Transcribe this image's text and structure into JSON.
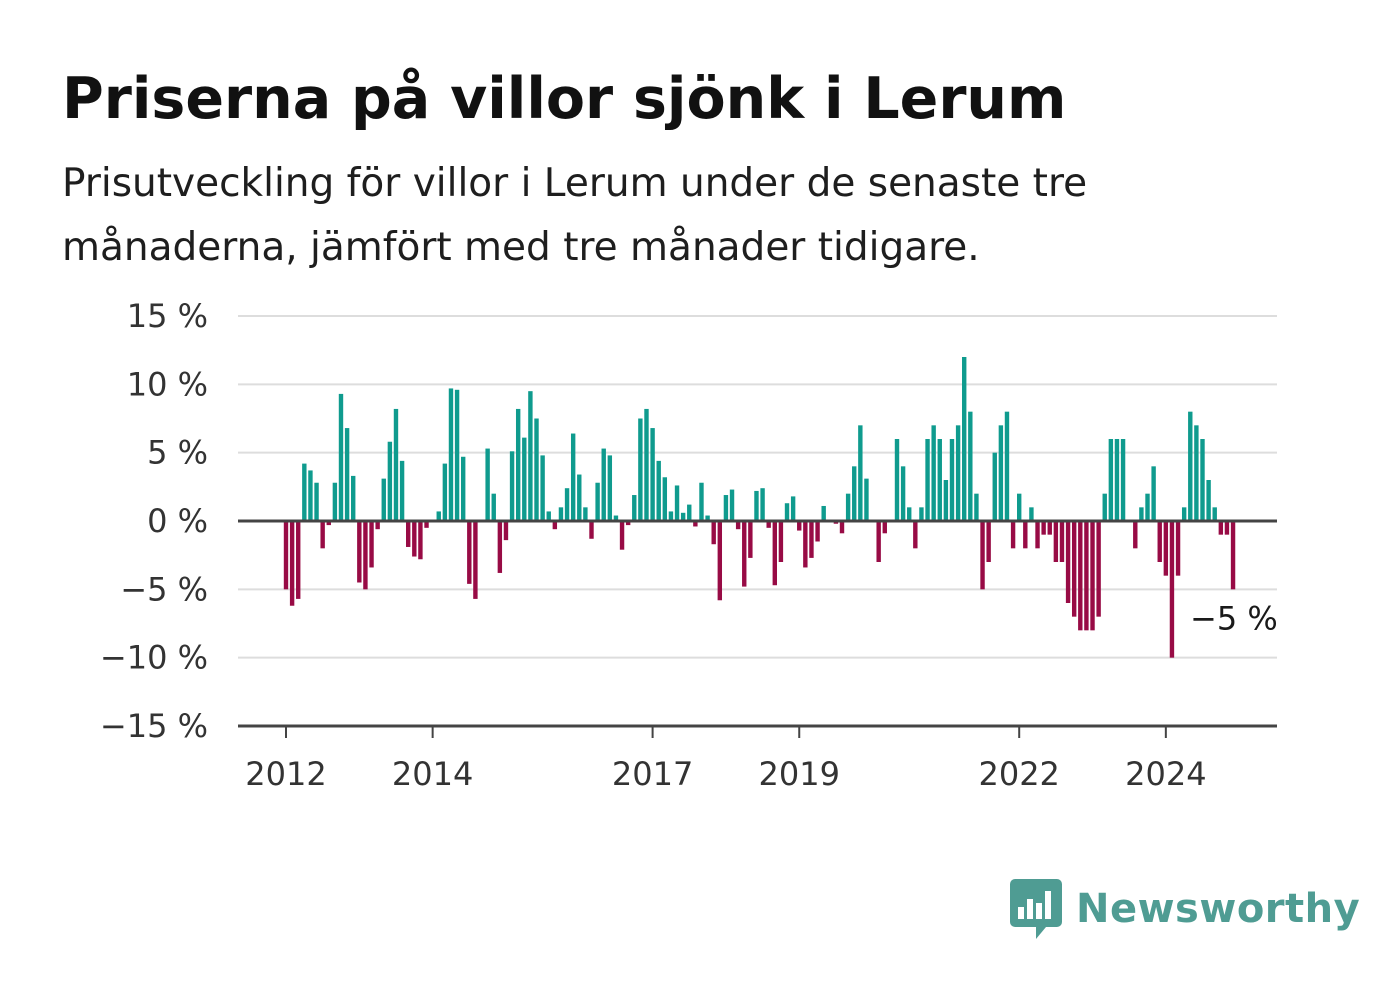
{
  "header": {
    "title": "Priserna på villor sjönk i Lerum",
    "subtitle": "Prisutveckling för villor i Lerum under de senaste tre månaderna, jämfört med tre månader tidigare."
  },
  "brand": {
    "name": "Newsworthy",
    "color": "#4f9c93"
  },
  "colors": {
    "positive": "#0f9b8e",
    "negative": "#980b45",
    "grid": "#dddddd",
    "zero": "#444444"
  },
  "chart_data": {
    "type": "bar",
    "title": "Priserna på villor sjönk i Lerum",
    "ylim": [
      -15,
      15
    ],
    "yticks": [
      15,
      10,
      5,
      0,
      -5,
      -10,
      -15
    ],
    "ytick_labels": [
      "15 %",
      "10 %",
      "5 %",
      "0 %",
      "−5 %",
      "−10 %",
      "−15 %"
    ],
    "xticks": [
      "2012",
      "2014",
      "2017",
      "2019",
      "2022",
      "2024"
    ],
    "grid": true,
    "end_label": "−5 %",
    "series": [
      {
        "start": "2012-01",
        "values": [
          -5,
          -6.2,
          -5.7,
          4.2,
          3.7,
          2.8,
          -2,
          -0.3,
          2.8,
          9.3,
          6.8,
          3.3,
          -4.5,
          -5,
          -3.4,
          -0.6,
          3.1,
          5.8,
          8.2,
          4.4,
          -1.9,
          -2.6,
          -2.8,
          -0.5,
          0,
          0.7,
          4.2,
          9.7,
          9.6,
          4.7,
          -4.6,
          -5.7,
          0.1,
          5.3,
          2,
          -3.8,
          -1.4,
          5.1,
          8.2,
          6.1,
          9.5,
          7.5,
          4.8,
          0.7,
          -0.6,
          1,
          2.4,
          6.4,
          3.4,
          1,
          -1.3,
          2.8,
          5.3,
          4.8,
          0.4,
          -2.1,
          -0.3,
          1.9,
          7.5,
          8.2,
          6.8,
          4.4,
          3.2,
          0.7,
          2.6,
          0.6,
          1.2,
          -0.4,
          2.8,
          0.4,
          -1.7,
          -5.8,
          1.9,
          2.3,
          -0.6,
          -4.8,
          -2.7,
          2.2,
          2.4,
          -0.5,
          -4.7,
          -3,
          1.3,
          1.8,
          -0.7,
          -3.4,
          -2.7,
          -1.5,
          1.1,
          0,
          -0.2,
          -0.9,
          2,
          4,
          7,
          3.1,
          0,
          -3,
          -0.9,
          0,
          6,
          4,
          1,
          -2,
          1,
          6,
          7,
          6,
          3,
          6,
          7,
          12,
          8,
          2,
          -5,
          -3,
          5,
          7,
          8,
          -2,
          2,
          -2,
          1,
          -2,
          -1,
          -1,
          -3,
          -3,
          -6,
          -7,
          -8,
          -8,
          -8,
          -7,
          2,
          6,
          6,
          6,
          0,
          -2,
          1,
          2,
          4,
          -3,
          -4,
          -10,
          -4,
          1,
          8,
          7,
          6,
          3,
          1,
          -1,
          -1,
          -5
        ]
      }
    ]
  }
}
